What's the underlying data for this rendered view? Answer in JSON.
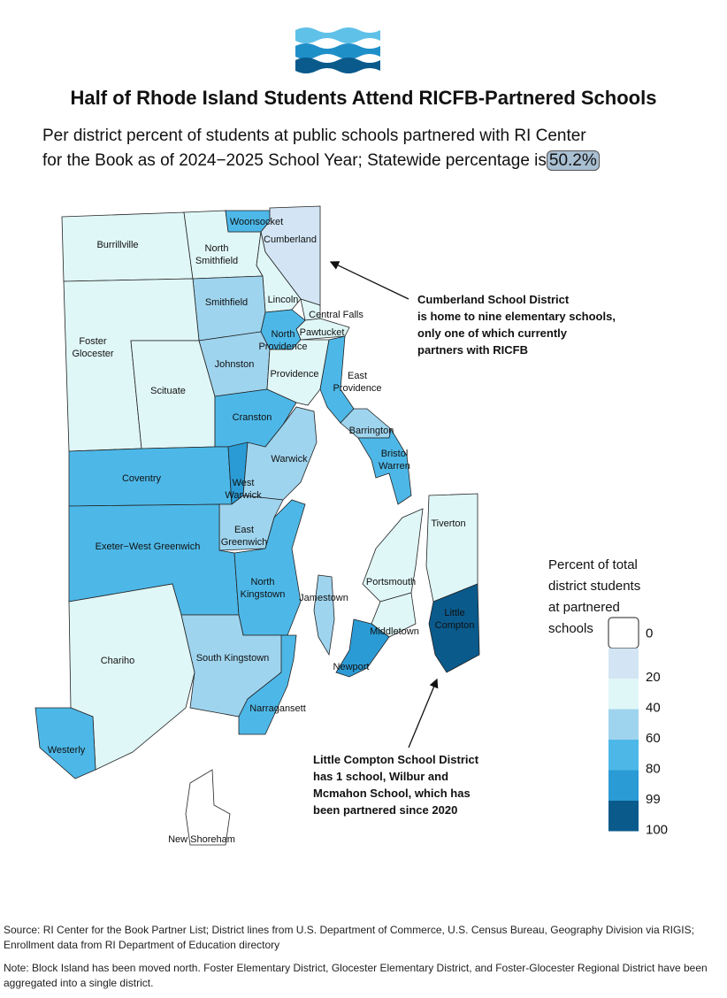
{
  "header": {
    "title": "Half of Rhode Island Students Attend RICFB-Partnered Schools",
    "subtitle_lines": [
      "Per district percent of students at public schools partnered with RI Center",
      "for the Book as of 2024−2025 School Year; Statewide percentage is"
    ],
    "statewide": "50.2%"
  },
  "districts": [
    {
      "name": [
        "Burrillville"
      ],
      "color": "#e0f7f7"
    },
    {
      "name": [
        "North",
        "Smithfield"
      ],
      "color": "#e0f7f7"
    },
    {
      "name": [
        "Woonsocket"
      ],
      "color": "#4db8e8"
    },
    {
      "name": [
        "Cumberland"
      ],
      "color": "#d3e5f4"
    },
    {
      "name": [
        "Lincoln"
      ],
      "color": "#e0f7f7"
    },
    {
      "name": [
        "Smithfield"
      ],
      "color": "#9fd4ee"
    },
    {
      "name": [
        "Central Falls"
      ],
      "color": "#e0f7f7"
    },
    {
      "name": [
        "Pawtucket"
      ],
      "color": "#e0f7f7"
    },
    {
      "name": [
        "North",
        "Providence"
      ],
      "color": "#4db8e8"
    },
    {
      "name": [
        "Foster",
        "Glocester"
      ],
      "color": "#e0f7f7"
    },
    {
      "name": [
        "Scituate"
      ],
      "color": "#e0f7f7"
    },
    {
      "name": [
        "Johnston"
      ],
      "color": "#9fd4ee"
    },
    {
      "name": [
        "Providence"
      ],
      "color": "#e0f7f7"
    },
    {
      "name": [
        "East",
        "Providence"
      ],
      "color": "#4db8e8"
    },
    {
      "name": [
        "Cranston"
      ],
      "color": "#4db8e8"
    },
    {
      "name": [
        "Barrington"
      ],
      "color": "#9fd4ee"
    },
    {
      "name": [
        "Bristol",
        "Warren"
      ],
      "color": "#4db8e8"
    },
    {
      "name": [
        "Coventry"
      ],
      "color": "#4db8e8"
    },
    {
      "name": [
        "West",
        "Warwick"
      ],
      "color": "#2b9bd5"
    },
    {
      "name": [
        "Warwick"
      ],
      "color": "#9fd4ee"
    },
    {
      "name": [
        "East",
        "Greenwich"
      ],
      "color": "#9fd4ee"
    },
    {
      "name": [
        "Exeter−West Greenwich"
      ],
      "color": "#4db8e8"
    },
    {
      "name": [
        "North",
        "Kingstown"
      ],
      "color": "#4db8e8"
    },
    {
      "name": [
        "Jamestown"
      ],
      "color": "#9fd4ee"
    },
    {
      "name": [
        "Portsmouth"
      ],
      "color": "#e0f7f7"
    },
    {
      "name": [
        "Middletown"
      ],
      "color": "#e0f7f7"
    },
    {
      "name": [
        "Newport"
      ],
      "color": "#2b9bd5"
    },
    {
      "name": [
        "Tiverton"
      ],
      "color": "#e0f7f7"
    },
    {
      "name": [
        "Little",
        "Compton"
      ],
      "color": "#0a5a8c"
    },
    {
      "name": [
        "Chariho"
      ],
      "color": "#e0f7f7"
    },
    {
      "name": [
        "South Kingstown"
      ],
      "color": "#9fd4ee"
    },
    {
      "name": [
        "Narragansett"
      ],
      "color": "#4db8e8"
    },
    {
      "name": [
        "Westerly"
      ],
      "color": "#4db8e8"
    },
    {
      "name": [
        "New Shoreham"
      ],
      "color": "#ffffff"
    }
  ],
  "legend": {
    "title_lines": [
      "Percent of total",
      "district students",
      "at partnered",
      "schools"
    ],
    "bins": [
      {
        "value": 0,
        "color": "#ffffff"
      },
      {
        "value": 20,
        "color": "#d3e5f4"
      },
      {
        "value": 40,
        "color": "#e0f7f7"
      },
      {
        "value": 60,
        "color": "#9fd4ee"
      },
      {
        "value": 80,
        "color": "#4db8e8"
      },
      {
        "value": 99,
        "color": "#2b9bd5"
      },
      {
        "value": 100,
        "color": "#0a5a8c"
      }
    ]
  },
  "annotations": [
    {
      "lines": [
        "Cumberland School District",
        "is home to nine elementary schools,",
        "only one of which currently",
        "partners with RICFB"
      ]
    },
    {
      "lines": [
        "Little Compton School District",
        "has 1 school, Wilbur and",
        "Mcmahon School, which has",
        "been partnered since 2020"
      ]
    }
  ],
  "footer": {
    "source": "Source: RI Center for the Book Partner List; District lines from U.S. Department of Commerce, U.S. Census Bureau, Geography Division via RIGIS; Enrollment data from RI Department of Education directory",
    "note": "Note: Block Island has been moved north. Foster Elementary District, Glocester Elementary District, and Foster-Glocester Regional District have been aggregated into a single district."
  }
}
